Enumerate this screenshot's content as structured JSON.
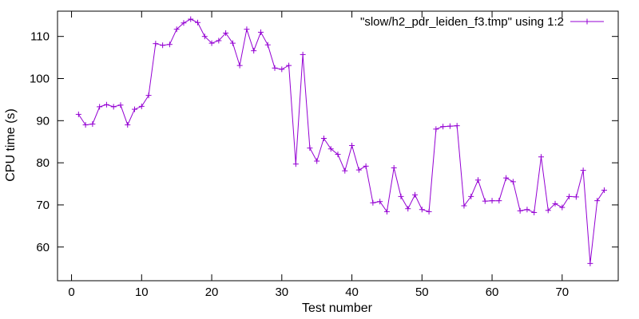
{
  "chart_data": {
    "type": "line",
    "title": "",
    "xlabel": "Test number",
    "ylabel": "CPU time (s)",
    "xlim": [
      -2,
      78
    ],
    "ylim": [
      52,
      116
    ],
    "xticks": [
      0,
      10,
      20,
      30,
      40,
      50,
      60,
      70
    ],
    "yticks": [
      60,
      70,
      80,
      90,
      100,
      110
    ],
    "grid": false,
    "legend": "top-right",
    "series": [
      {
        "name": "\"slow/h2_pdr_leiden_f3.tmp\" using 1:2",
        "color": "#9400d3",
        "marker": "plus",
        "x": [
          1,
          2,
          3,
          4,
          5,
          6,
          7,
          8,
          9,
          10,
          11,
          12,
          13,
          14,
          15,
          16,
          17,
          18,
          19,
          20,
          21,
          22,
          23,
          24,
          25,
          26,
          27,
          28,
          29,
          30,
          31,
          32,
          33,
          34,
          35,
          36,
          37,
          38,
          39,
          40,
          41,
          42,
          43,
          44,
          45,
          46,
          47,
          48,
          49,
          50,
          51,
          52,
          53,
          54,
          55,
          56,
          57,
          58,
          59,
          60,
          61,
          62,
          63,
          64,
          65,
          66,
          67,
          68,
          69,
          70,
          71,
          72,
          73,
          74,
          75,
          76
        ],
        "y": [
          91.5,
          89.0,
          89.2,
          93.3,
          93.8,
          93.3,
          93.7,
          89.0,
          92.7,
          93.4,
          96.0,
          108.3,
          107.9,
          108.1,
          111.7,
          113.2,
          114.1,
          113.3,
          110.0,
          108.4,
          109.0,
          110.8,
          108.4,
          103.1,
          111.7,
          106.6,
          111.0,
          108.0,
          102.5,
          102.2,
          103.1,
          79.7,
          105.7,
          83.5,
          80.4,
          85.8,
          83.3,
          82.0,
          78.1,
          84.1,
          78.3,
          79.2,
          70.5,
          70.8,
          68.4,
          78.8,
          72.0,
          69.1,
          72.4,
          68.9,
          68.4,
          88.0,
          88.6,
          88.7,
          88.8,
          69.8,
          72.0,
          75.9,
          70.9,
          71.0,
          71.0,
          76.4,
          75.5,
          68.6,
          68.9,
          68.2,
          81.4,
          68.7,
          70.3,
          69.4,
          72.0,
          71.9,
          78.2,
          56.1,
          71.0,
          73.5
        ]
      }
    ]
  }
}
